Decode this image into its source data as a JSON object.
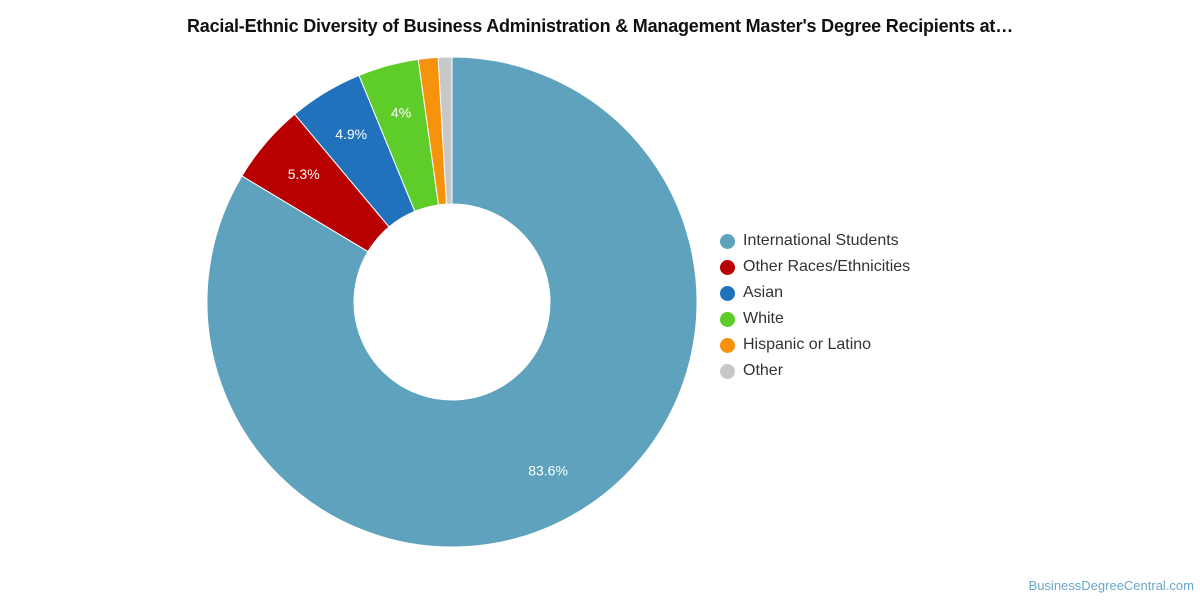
{
  "title": "Racial-Ethnic Diversity of Business Administration & Management Master's Degree Recipients at…",
  "source_label": "BusinessDegreeCentral.com",
  "chart_data": {
    "type": "pie",
    "title": "Racial-Ethnic Diversity of Business Administration & Management Master's Degree Recipients at…",
    "legend_position": "right",
    "categories": [
      "International Students",
      "Other Races/Ethnicities",
      "Asian",
      "White",
      "Hispanic or Latino",
      "Other"
    ],
    "values": [
      83.6,
      5.3,
      4.9,
      4.0,
      1.3,
      0.9
    ],
    "data_labels": [
      "83.6%",
      "5.3%",
      "4.9%",
      "4%",
      "",
      ""
    ],
    "colors": [
      "#5ea2be",
      "#b80000",
      "#1f72bb",
      "#5ecd2a",
      "#f7920d",
      "#c8c8c8"
    ]
  }
}
